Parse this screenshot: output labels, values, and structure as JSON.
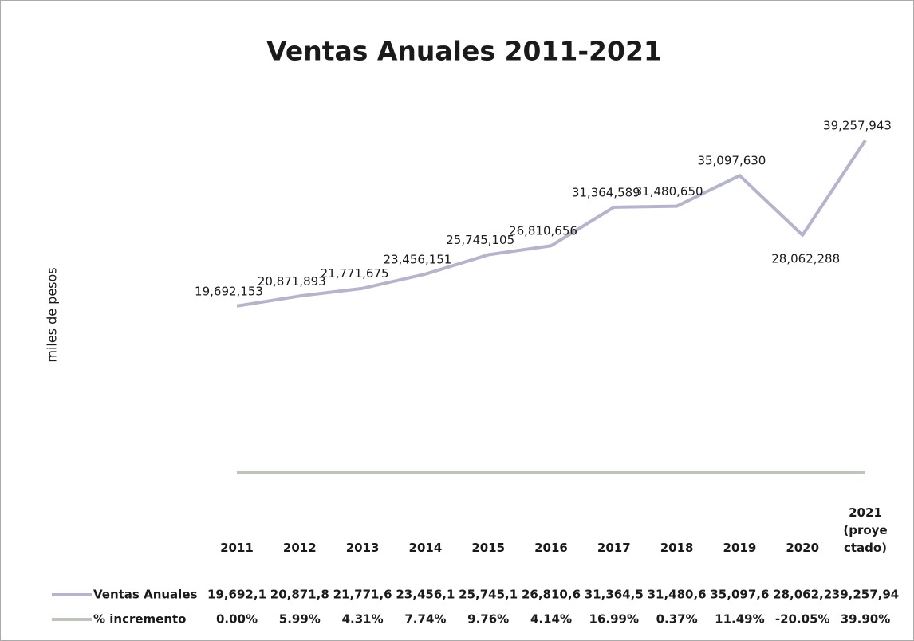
{
  "chart_data": {
    "type": "line",
    "title": "Ventas Anuales 2011-2021",
    "ylabel": "miles de pesos",
    "categories": [
      "2011",
      "2012",
      "2013",
      "2014",
      "2015",
      "2016",
      "2017",
      "2018",
      "2019",
      "2020",
      "2021 (proyectado)"
    ],
    "ylim": [
      0,
      45000000
    ],
    "series": [
      {
        "name": "Ventas Anuales",
        "color": "#b4b4cc",
        "values": [
          19692153,
          20871893,
          21771675,
          23456151,
          25745105,
          26810656,
          31364589,
          31480650,
          35097630,
          28062288,
          39257943
        ],
        "value_labels": [
          "19,692,153",
          "20,871,893",
          "21,771,675",
          "23,456,151",
          "25,745,105",
          "26,810,656",
          "31,364,589",
          "31,480,650",
          "35,097,630",
          "28,062,288",
          "39,257,943"
        ],
        "table_value_labels": [
          "19,692,1",
          "20,871,8",
          "21,771,6",
          "23,456,1",
          "25,745,1",
          "26,810,6",
          "31,364,5",
          "31,480,6",
          "35,097,6",
          "28,062,2",
          "39,257,94"
        ]
      },
      {
        "name": "% incremento",
        "color": "#bcc4bc",
        "values": [
          0.0,
          5.99,
          4.31,
          7.74,
          9.76,
          4.14,
          16.99,
          0.37,
          11.49,
          -20.05,
          39.9
        ],
        "value_labels": [
          "0.00%",
          "5.99%",
          "4.31%",
          "7.74%",
          "9.76%",
          "4.14%",
          "16.99%",
          "0.37%",
          "11.49%",
          "-20.05%",
          "39.90%"
        ]
      }
    ]
  }
}
